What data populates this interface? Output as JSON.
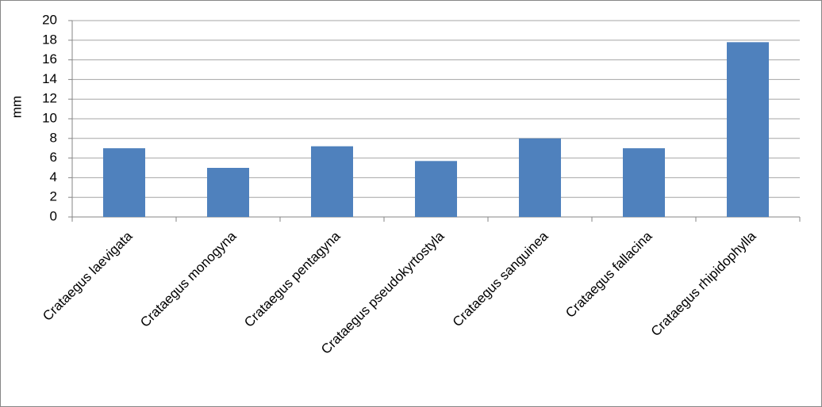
{
  "chart_data": {
    "type": "bar",
    "ylabel": "mm",
    "categories": [
      "Crataegus laevigata",
      "Crataegus monogyna",
      "Crataegus pentagyna",
      "Crataegus pseudokyrtostyla",
      "Crataegus sanguinea",
      "Crataegus fallacina",
      "Crataegus rhipidophylla"
    ],
    "values": [
      7,
      5,
      7.2,
      5.7,
      8,
      7,
      17.8
    ],
    "color": "#4f81bd",
    "ylim": [
      0,
      20
    ],
    "yticks": [
      0,
      2,
      4,
      6,
      8,
      10,
      12,
      14,
      16,
      18,
      20
    ],
    "grid": true
  }
}
